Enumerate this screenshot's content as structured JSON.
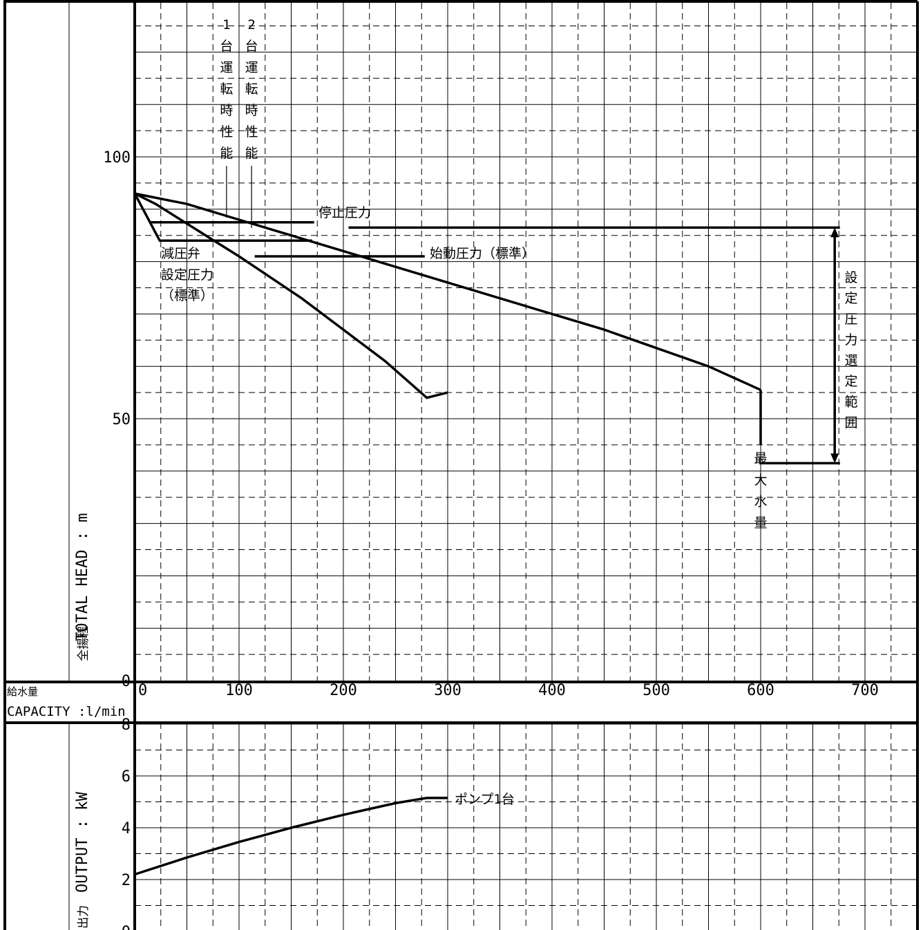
{
  "chart_data": [
    {
      "type": "line",
      "panel": "head",
      "ylabel_jp": "全揚程",
      "ylabel": "TOTAL HEAD : m",
      "yticks": [
        0,
        50,
        100
      ],
      "ylim": [
        0,
        130
      ],
      "xlim": [
        0,
        750
      ],
      "grid": true,
      "series": [
        {
          "x": [
            0,
            20,
            40,
            60,
            80,
            100,
            130,
            160,
            200,
            240,
            280,
            300
          ],
          "y": [
            93,
            91,
            88.5,
            86,
            83.5,
            81,
            77,
            73,
            67,
            61,
            54,
            55
          ]
        },
        {
          "x": [
            0,
            50,
            100,
            150,
            200,
            250,
            300,
            350,
            400,
            450,
            500,
            550,
            600
          ],
          "y": [
            93,
            91,
            88,
            85,
            82,
            79,
            76,
            73,
            70,
            67,
            63.5,
            60,
            55.5
          ]
        }
      ],
      "annotations": {
        "stop_pressure": "停止圧力",
        "start_pressure": "始動圧力（標準）",
        "prv_line1": "減圧弁",
        "prv_line2": "設定圧力",
        "prv_line3": "（標準）",
        "one_pump": "1台運転時性能",
        "two_pump": "2台運転時性能",
        "max_flow": "最大水量",
        "range": "設定圧力選定範囲"
      }
    },
    {
      "type": "line",
      "panel": "output",
      "ylabel_jp": "出力",
      "ylabel": "OUTPUT : kW",
      "yticks": [
        0,
        2,
        4,
        6,
        8
      ],
      "ylim": [
        0,
        8
      ],
      "xlim": [
        0,
        750
      ],
      "grid": true,
      "series": [
        {
          "name": "ポンプ1台",
          "x": [
            0,
            50,
            100,
            150,
            200,
            250,
            280,
            300
          ],
          "y": [
            2.2,
            2.85,
            3.45,
            4.0,
            4.5,
            4.95,
            5.15,
            5.15
          ]
        }
      ]
    }
  ],
  "x_axis": {
    "label_jp": "給水量",
    "label": "CAPACITY :l/min",
    "ticks": [
      0,
      100,
      200,
      300,
      400,
      500,
      600,
      700
    ]
  }
}
